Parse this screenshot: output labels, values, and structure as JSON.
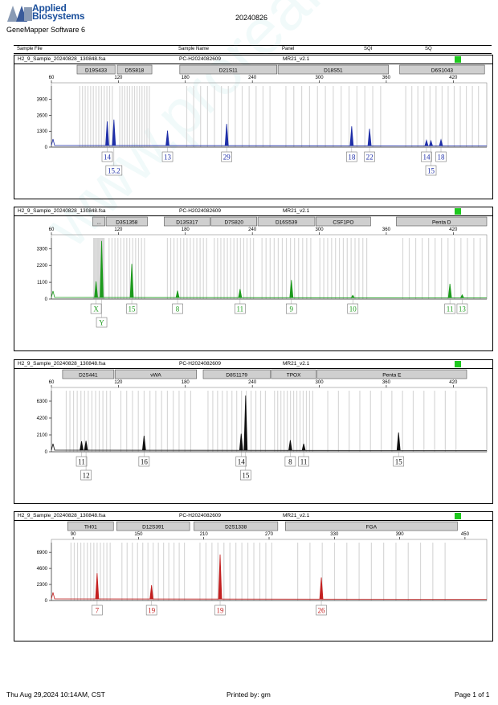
{
  "header": {
    "brand_line1": "Applied",
    "brand_line2": "Biosystems",
    "software": "GeneMapper Software 6",
    "report_date": "20240826"
  },
  "columns": {
    "sample_file": "Sample File",
    "sample_name": "Sample Name",
    "panel": "Panel",
    "sqi": "SQI",
    "sq": "SQ"
  },
  "footer": {
    "printed_date": "Thu Aug 29,2024 10:14AM, CST",
    "printed_by": "Printed by: gm",
    "page": "Page 1 of 1"
  },
  "watermark": "www.proreal.com.cn",
  "colors": {
    "blue": "#1f2fa8",
    "green": "#1d9b1d",
    "black": "#111111",
    "red": "#c42020",
    "status": "#1ec81e"
  },
  "chart_data": [
    {
      "type": "line",
      "dye": "blue",
      "sample_file": "H2_9_Sample_20240828_130848.fsa",
      "sample_name": "PC-H2024082609",
      "panel": "MR21_v2.1",
      "xlim": [
        60,
        450
      ],
      "x_ticks": [
        60,
        120,
        180,
        240,
        300,
        360,
        420
      ],
      "y_ticks": [
        0,
        1300,
        2600,
        3900
      ],
      "ylim": [
        0,
        5000
      ],
      "markers": [
        {
          "name": "D19S433",
          "range": [
            83,
            117
          ]
        },
        {
          "name": "D5S818",
          "range": [
            119,
            150
          ]
        },
        {
          "name": "D21S11",
          "range": [
            175,
            262
          ]
        },
        {
          "name": "D18S51",
          "range": [
            263,
            362
          ]
        },
        {
          "name": "D6S1043",
          "range": [
            372,
            448
          ]
        }
      ],
      "peaks": [
        {
          "x": 110,
          "y": 2100,
          "label": "14"
        },
        {
          "x": 116,
          "y": 2250,
          "label": "15.2"
        },
        {
          "x": 164,
          "y": 1350,
          "label": "13"
        },
        {
          "x": 217,
          "y": 1900,
          "label": "29"
        },
        {
          "x": 329,
          "y": 1700,
          "label": "18"
        },
        {
          "x": 345,
          "y": 1500,
          "label": "22"
        },
        {
          "x": 396,
          "y": 560,
          "label": "14"
        },
        {
          "x": 400,
          "y": 520,
          "label": "15"
        },
        {
          "x": 409,
          "y": 600,
          "label": "18"
        }
      ]
    },
    {
      "type": "line",
      "dye": "green",
      "sample_file": "H2_9_Sample_20240828_130848.fsa",
      "sample_name": "PC-H2024082609",
      "panel": "MR21_v2.1",
      "xlim": [
        60,
        450
      ],
      "x_ticks": [
        60,
        120,
        180,
        240,
        300,
        360,
        420
      ],
      "y_ticks": [
        0,
        1100,
        2200,
        3300
      ],
      "ylim": [
        0,
        4000
      ],
      "markers": [
        {
          "name": "...",
          "range": [
            97,
            108
          ]
        },
        {
          "name": "D3S1358",
          "range": [
            109,
            146
          ]
        },
        {
          "name": "D13S317",
          "range": [
            161,
            202
          ]
        },
        {
          "name": "D7S820",
          "range": [
            203,
            244
          ]
        },
        {
          "name": "D16S539",
          "range": [
            245,
            296
          ]
        },
        {
          "name": "CSF1PO",
          "range": [
            297,
            346
          ]
        },
        {
          "name": "Penta D",
          "range": [
            369,
            450
          ]
        }
      ],
      "peaks": [
        {
          "x": 100,
          "y": 1150,
          "label": "X"
        },
        {
          "x": 105,
          "y": 3800,
          "label": "Y"
        },
        {
          "x": 132,
          "y": 2300,
          "label": "15"
        },
        {
          "x": 173,
          "y": 550,
          "label": "8"
        },
        {
          "x": 229,
          "y": 650,
          "label": "11"
        },
        {
          "x": 275,
          "y": 1250,
          "label": "9"
        },
        {
          "x": 330,
          "y": 250,
          "label": "10"
        },
        {
          "x": 417,
          "y": 1000,
          "label": "11"
        },
        {
          "x": 428,
          "y": 280,
          "label": "13"
        }
      ]
    },
    {
      "type": "line",
      "dye": "black",
      "sample_file": "H2_9_Sample_20240828_130848.fsa",
      "sample_name": "PC-H2024082609",
      "panel": "MR21_v2.1",
      "xlim": [
        60,
        450
      ],
      "x_ticks": [
        60,
        120,
        180,
        240,
        300,
        360,
        420
      ],
      "y_ticks": [
        0,
        2100,
        4200,
        6300
      ],
      "ylim": [
        0,
        7600
      ],
      "markers": [
        {
          "name": "D2S441",
          "range": [
            70,
            116
          ]
        },
        {
          "name": "vWA",
          "range": [
            117,
            190
          ]
        },
        {
          "name": "D8S1179",
          "range": [
            196,
            256
          ]
        },
        {
          "name": "TPOX",
          "range": [
            257,
            297
          ]
        },
        {
          "name": "Penta E",
          "range": [
            298,
            432
          ]
        }
      ],
      "peaks": [
        {
          "x": 87,
          "y": 1300,
          "label": "11"
        },
        {
          "x": 91,
          "y": 1350,
          "label": "12"
        },
        {
          "x": 143,
          "y": 2000,
          "label": "16"
        },
        {
          "x": 230,
          "y": 2250,
          "label": "14"
        },
        {
          "x": 234,
          "y": 7000,
          "label": "15"
        },
        {
          "x": 274,
          "y": 1450,
          "label": "8"
        },
        {
          "x": 286,
          "y": 1000,
          "label": "11"
        },
        {
          "x": 371,
          "y": 2400,
          "label": "15"
        }
      ]
    },
    {
      "type": "line",
      "dye": "red",
      "sample_file": "H2_9_Sample_20240828_130848.fsa",
      "sample_name": "PC-H2024082609",
      "panel": "MR21_v2.1",
      "xlim": [
        70,
        470
      ],
      "x_ticks": [
        90,
        150,
        210,
        270,
        330,
        390,
        450
      ],
      "y_ticks": [
        0,
        2300,
        4600,
        6900
      ],
      "ylim": [
        0,
        8300
      ],
      "markers": [
        {
          "name": "TH01",
          "range": [
            85,
            127
          ]
        },
        {
          "name": "D12S391",
          "range": [
            130,
            197
          ]
        },
        {
          "name": "D2S1338",
          "range": [
            201,
            278
          ]
        },
        {
          "name": "FGA",
          "range": [
            285,
            443
          ]
        }
      ],
      "peaks": [
        {
          "x": 112,
          "y": 3900,
          "label": "7"
        },
        {
          "x": 162,
          "y": 2200,
          "label": "19"
        },
        {
          "x": 225,
          "y": 6600,
          "label": "19"
        },
        {
          "x": 318,
          "y": 3300,
          "label": "26"
        }
      ]
    }
  ]
}
